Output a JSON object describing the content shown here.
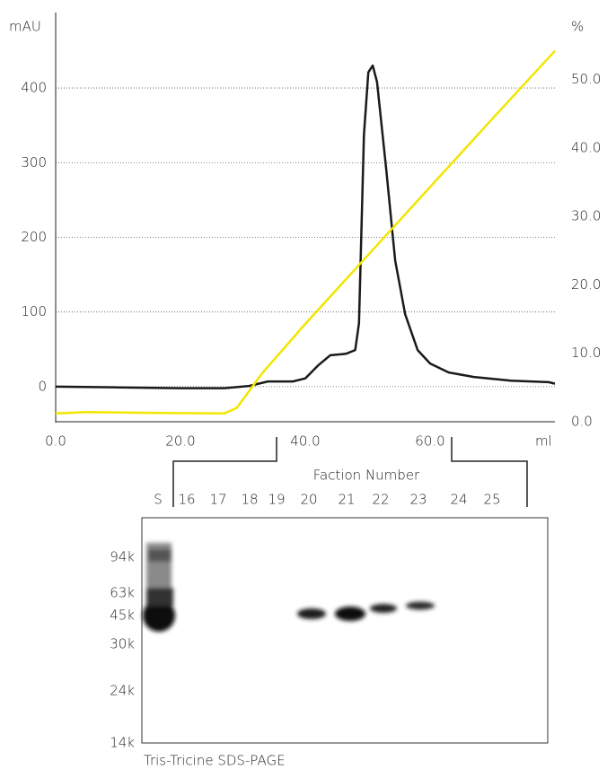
{
  "chart_data": {
    "type": "line",
    "y_label": "mAU",
    "y2_label": "%",
    "x_label": "ml",
    "xlim": [
      0,
      80
    ],
    "xticks": [
      {
        "value": 0,
        "label": "0.0"
      },
      {
        "value": 20,
        "label": "20.0"
      },
      {
        "value": 40,
        "label": "40.0"
      },
      {
        "value": 60,
        "label": "60.0"
      }
    ],
    "ylim": [
      -47,
      501
    ],
    "yticks": [
      0,
      100,
      200,
      300,
      400
    ],
    "y2lim": [
      0,
      59.8
    ],
    "y2ticks": [
      {
        "value": 0,
        "label": "0.0"
      },
      {
        "value": 10,
        "label": "10.0"
      },
      {
        "value": 20,
        "label": "20.0"
      },
      {
        "value": 30,
        "label": "30.0"
      },
      {
        "value": 40,
        "label": "40.0"
      },
      {
        "value": 50,
        "label": "50.0"
      }
    ],
    "grid": true,
    "series": [
      {
        "color": "#1a1a1a",
        "x": [
          0,
          10,
          20,
          27,
          31,
          34,
          38,
          40,
          42,
          44,
          46.5,
          48,
          48.6,
          49.4,
          50.1,
          50.8,
          51.5,
          53,
          54.4,
          56,
          58,
          60,
          63,
          67,
          73,
          79,
          80
        ],
        "values": [
          0,
          -1,
          -2,
          -2,
          1,
          7,
          7,
          11,
          28,
          42,
          44,
          49,
          85,
          337,
          421,
          430,
          408,
          289,
          169,
          97,
          49,
          31,
          19,
          13,
          8,
          6,
          4
        ]
      },
      {
        "color": "#f2e600",
        "axis": "y2",
        "x": [
          0,
          5,
          15,
          27,
          29,
          31,
          33,
          40,
          50,
          60,
          70,
          80
        ],
        "values": [
          1.2,
          1.4,
          1.3,
          1.2,
          2.0,
          4.5,
          7,
          14.3,
          24.3,
          34.3,
          44.3,
          54.2
        ]
      }
    ]
  },
  "gel": {
    "title": "Faction Number",
    "lanes": [
      "S",
      "16",
      "17",
      "18",
      "19",
      "20",
      "21",
      "22",
      "23",
      "24",
      "25"
    ],
    "markers": [
      "94k",
      "63k",
      "45k",
      "30k",
      "24k",
      "14k"
    ],
    "caption": "Tris-Tricine SDS-PAGE"
  }
}
